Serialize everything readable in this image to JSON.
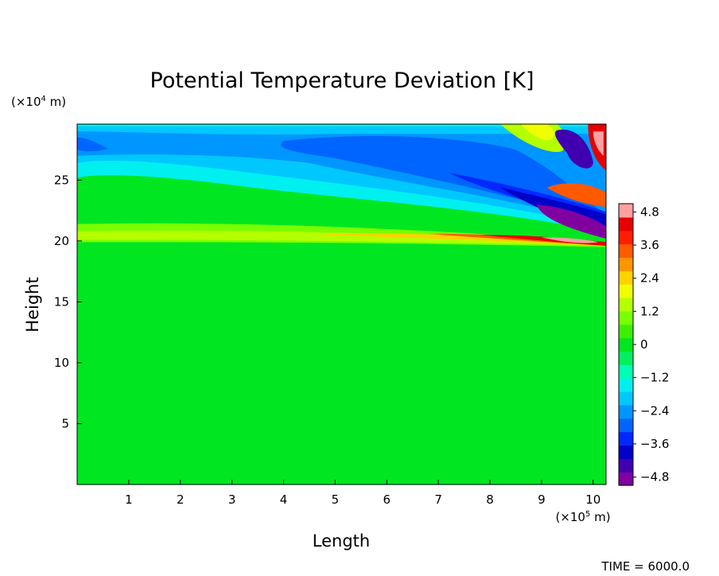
{
  "chart_data": {
    "type": "heatmap",
    "title": "Potential Temperature Deviation [K]",
    "xlabel": "Length",
    "ylabel": "Height",
    "x_unit_prefix": "(×10",
    "x_unit_exp": "5",
    "x_unit_suffix": " m)",
    "y_unit_prefix": "(×10",
    "y_unit_exp": "4",
    "y_unit_suffix": " m)",
    "xlim": [
      0,
      10.25
    ],
    "ylim": [
      0,
      29.6
    ],
    "x_ticks": [
      {
        "value": 1,
        "label": "1"
      },
      {
        "value": 2,
        "label": "2"
      },
      {
        "value": 3,
        "label": "3"
      },
      {
        "value": 4,
        "label": "4"
      },
      {
        "value": 5,
        "label": "5"
      },
      {
        "value": 6,
        "label": "6"
      },
      {
        "value": 7,
        "label": "7"
      },
      {
        "value": 8,
        "label": "8"
      },
      {
        "value": 9,
        "label": "9"
      },
      {
        "value": 10,
        "label": "10"
      }
    ],
    "y_ticks": [
      {
        "value": 5,
        "label": "5"
      },
      {
        "value": 10,
        "label": "10"
      },
      {
        "value": 15,
        "label": "15"
      },
      {
        "value": 20,
        "label": "20"
      },
      {
        "value": 25,
        "label": "25"
      }
    ],
    "colorbar": {
      "range": [
        -5.1,
        5.1
      ],
      "ticks": [
        {
          "value": 4.8,
          "label": "4.8"
        },
        {
          "value": 3.6,
          "label": "3.6"
        },
        {
          "value": 2.4,
          "label": "2.4"
        },
        {
          "value": 1.2,
          "label": "1.2"
        },
        {
          "value": 0,
          "label": "0"
        },
        {
          "value": -1.2,
          "label": "−1.2"
        },
        {
          "value": -2.4,
          "label": "−2.4"
        },
        {
          "value": -3.6,
          "label": "−3.6"
        },
        {
          "value": -4.8,
          "label": "−4.8"
        }
      ],
      "colors": [
        "#8000a0",
        "#4000b0",
        "#0000c8",
        "#0028ff",
        "#0064ff",
        "#0096ff",
        "#00c8ff",
        "#00f0f0",
        "#00ffb4",
        "#00f060",
        "#00e620",
        "#3cf000",
        "#78ff00",
        "#b4ff00",
        "#f0ff00",
        "#ffd200",
        "#ff9600",
        "#ff5a00",
        "#ff1e00",
        "#e60000",
        "#ffa0a0"
      ]
    },
    "annotation": "TIME = 6000.0"
  }
}
